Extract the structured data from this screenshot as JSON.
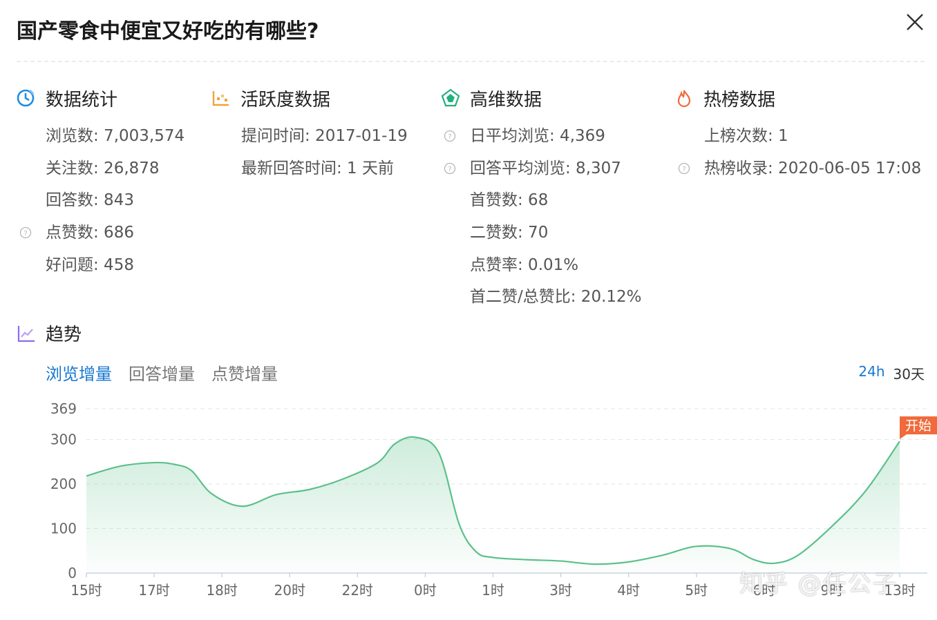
{
  "title": "国产零食中便宜又好吃的有哪些?",
  "sections": [
    {
      "icon": "clock-icon",
      "label": "数据统计",
      "rows": [
        {
          "text": "浏览数: 7,003,574",
          "help": false
        },
        {
          "text": "关注数: 26,878",
          "help": false
        },
        {
          "text": "回答数: 843",
          "help": false
        },
        {
          "text": "点赞数: 686",
          "help": true
        },
        {
          "text": "好问题: 458",
          "help": false
        }
      ]
    },
    {
      "icon": "activity-icon",
      "label": "活跃度数据",
      "rows": [
        {
          "text": "提问时间: 2017-01-19",
          "help": false
        },
        {
          "text": "最新回答时间: 1 天前",
          "help": false
        }
      ]
    },
    {
      "icon": "radar-icon",
      "label": "高维数据",
      "rows": [
        {
          "text": "日平均浏览: 4,369",
          "help": true
        },
        {
          "text": "回答平均浏览: 8,307",
          "help": true
        },
        {
          "text": "首赞数: 68",
          "help": false
        },
        {
          "text": "二赞数: 70",
          "help": false
        },
        {
          "text": "点赞率: 0.01%",
          "help": false
        },
        {
          "text": "首二赞/总赞比: 20.12%",
          "help": false
        }
      ]
    },
    {
      "icon": "flame-icon",
      "label": "热榜数据",
      "rows": [
        {
          "text": "上榜次数: 1",
          "help": false
        },
        {
          "text": "热榜收录: 2020-06-05 17:08",
          "help": true
        }
      ]
    }
  ],
  "trend": {
    "label": "趋势",
    "tabs": [
      "浏览增量",
      "回答增量",
      "点赞增量"
    ],
    "active_tab": 0,
    "ranges": [
      "24h",
      "30天"
    ],
    "active_range": 0
  },
  "watermark": "知乎 @任公子",
  "colors": {
    "accent": "#1677d2",
    "line": "#5cc08a",
    "marker": "#f06a3b"
  },
  "chart_data": {
    "type": "area",
    "x_labels": [
      "15时",
      "17时",
      "18时",
      "20时",
      "22时",
      "0时",
      "1时",
      "3时",
      "4时",
      "5时",
      "6时",
      "9时",
      "13时"
    ],
    "y_ticks": [
      0,
      100,
      200,
      300,
      369
    ],
    "ylim": [
      0,
      369
    ],
    "series": [
      {
        "x": [
          0,
          0.5,
          1,
          1.3,
          1.55,
          1.85,
          2.3,
          2.8,
          3.3,
          3.8,
          4.3,
          4.55,
          4.85,
          5.2,
          5.5,
          5.75,
          6,
          6.5,
          7,
          7.5,
          8,
          8.5,
          9,
          9.5,
          9.85,
          10.15,
          10.5,
          11,
          11.5,
          12
        ],
        "values": [
          218,
          240,
          248,
          244,
          230,
          178,
          150,
          176,
          188,
          212,
          248,
          290,
          305,
          270,
          110,
          48,
          35,
          30,
          27,
          20,
          25,
          40,
          60,
          55,
          30,
          22,
          40,
          105,
          185,
          296
        ]
      }
    ],
    "annotation": "开始"
  }
}
